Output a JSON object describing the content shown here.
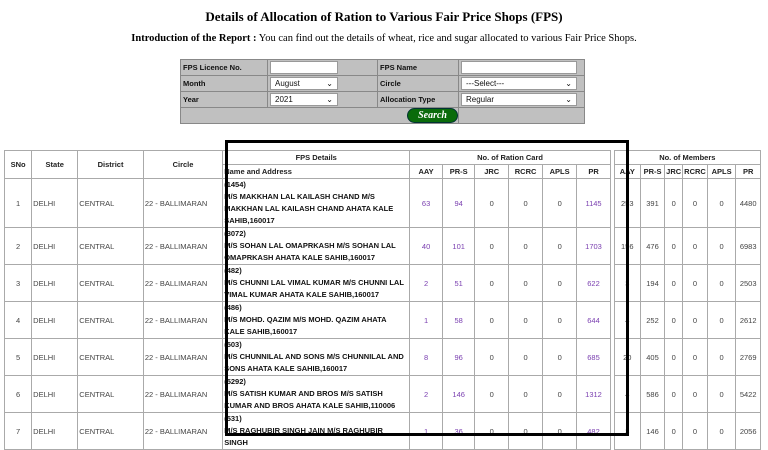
{
  "title": "Details of Allocation of Ration to Various Fair Price Shops (FPS)",
  "intro_label": "Introduction of the Report :",
  "intro_text": " You can find out the details of wheat, rice and sugar allocated to various Fair Price Shops.",
  "form": {
    "licence_label": "FPS Licence No.",
    "licence_value": "",
    "name_label": "FPS Name",
    "name_value": "",
    "month_label": "Month",
    "month_value": "August",
    "circle_label": "Circle",
    "circle_value": "---Select---",
    "year_label": "Year",
    "year_value": "2021",
    "alloc_label": "Allocation Type",
    "alloc_value": "Regular",
    "search_label": "Search"
  },
  "table": {
    "headers": {
      "sno": "SNo",
      "state": "State",
      "district": "District",
      "circle": "Circle",
      "fps": "FPS Details",
      "name_addr": "Name and Address",
      "ration": "No. of Ration Card",
      "members": "No. of Members"
    },
    "sub": [
      "AAY",
      "PR-S",
      "JRC",
      "RCRC",
      "APLS",
      "PR"
    ],
    "rows": [
      {
        "sno": "1",
        "state": "DELHI",
        "district": "CENTRAL",
        "circle": "22 - BALLIMARAN",
        "code": "(1454)",
        "name": "M/S MAKKHAN LAL KAILASH CHAND M/S MAKKHAN LAL KAILASH CHAND AHATA KALE SAHIB,160017",
        "rc": [
          "63",
          "94",
          "0",
          "0",
          "0",
          "1145"
        ],
        "mem": [
          "253",
          "391",
          "0",
          "0",
          "0",
          "4480"
        ]
      },
      {
        "sno": "2",
        "state": "DELHI",
        "district": "CENTRAL",
        "circle": "22 - BALLIMARAN",
        "code": "(3072)",
        "name": "M/S SOHAN LAL OMAPRKASH M/S SOHAN LAL OMAPRKASH AHATA KALE SAHIB,160017",
        "rc": [
          "40",
          "101",
          "0",
          "0",
          "0",
          "1703"
        ],
        "mem": [
          "156",
          "476",
          "0",
          "0",
          "0",
          "6983"
        ]
      },
      {
        "sno": "3",
        "state": "DELHI",
        "district": "CENTRAL",
        "circle": "22 - BALLIMARAN",
        "code": "(482)",
        "name": "M/S CHUNNI LAL VIMAL KUMAR M/S CHUNNI LAL VIMAL KUMAR AHATA KALE SAHIB,160017",
        "rc": [
          "2",
          "51",
          "0",
          "0",
          "0",
          "622"
        ],
        "mem": [
          "3",
          "194",
          "0",
          "0",
          "0",
          "2503"
        ]
      },
      {
        "sno": "4",
        "state": "DELHI",
        "district": "CENTRAL",
        "circle": "22 - BALLIMARAN",
        "code": "(486)",
        "name": "M/S MOHD. QAZIM M/S MOHD. QAZIM AHATA KALE SAHIB,160017",
        "rc": [
          "1",
          "58",
          "0",
          "0",
          "0",
          "644"
        ],
        "mem": [
          "4",
          "252",
          "0",
          "0",
          "0",
          "2612"
        ]
      },
      {
        "sno": "5",
        "state": "DELHI",
        "district": "CENTRAL",
        "circle": "22 - BALLIMARAN",
        "code": "(503)",
        "name": "M/S CHUNNILAL AND SONS M/S CHUNNILAL AND SONS AHATA KALE SAHIB,160017",
        "rc": [
          "8",
          "96",
          "0",
          "0",
          "0",
          "685"
        ],
        "mem": [
          "20",
          "405",
          "0",
          "0",
          "0",
          "2769"
        ]
      },
      {
        "sno": "6",
        "state": "DELHI",
        "district": "CENTRAL",
        "circle": "22 - BALLIMARAN",
        "code": "(5292)",
        "name": "M/S SATISH KUMAR AND BROS M/S SATISH KUMAR AND BROS AHATA KALE SAHIB,110006",
        "rc": [
          "2",
          "146",
          "0",
          "0",
          "0",
          "1312"
        ],
        "mem": [
          "4",
          "586",
          "0",
          "0",
          "0",
          "5422"
        ]
      },
      {
        "sno": "7",
        "state": "DELHI",
        "district": "CENTRAL",
        "circle": "22 - BALLIMARAN",
        "code": "(531)",
        "name": "M/S RAGHUBIR SINGH JAIN M/S RAGHUBIR SINGH",
        "rc": [
          "1",
          "36",
          "0",
          "0",
          "0",
          "482"
        ],
        "mem": [
          "3",
          "146",
          "0",
          "0",
          "0",
          "2056"
        ]
      }
    ]
  }
}
